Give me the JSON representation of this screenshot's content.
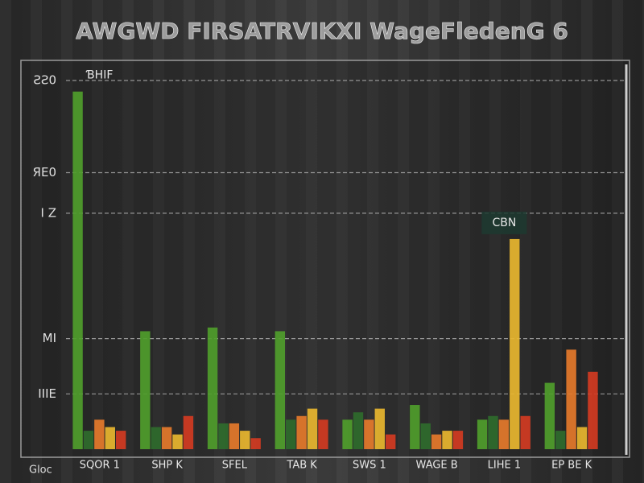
{
  "chart_data": {
    "type": "bar",
    "title": "AWGWD FIRSATRVIKXI WageFledenG 6",
    "corner_label": "Gloc",
    "annotations": [
      {
        "text": "ƁHIF",
        "category": 0
      },
      {
        "text": "CBN",
        "category": 6
      }
    ],
    "categories": [
      "SQOR 1",
      "SHP K",
      "SFEL",
      "TAB K",
      "SWS 1",
      "WAGE B",
      "LIHE 1",
      "EP BE K"
    ],
    "series": [
      {
        "color": "#4f9d2b",
        "values": [
          97,
          32,
          33,
          32,
          8,
          12,
          8,
          18
        ]
      },
      {
        "color": "#2f6b2c",
        "values": [
          5,
          6,
          7,
          8,
          10,
          7,
          9,
          5
        ]
      },
      {
        "color": "#e57a2b",
        "values": [
          8,
          6,
          7,
          9,
          8,
          4,
          8,
          27
        ]
      },
      {
        "color": "#e8b62f",
        "values": [
          6,
          4,
          5,
          11,
          11,
          5,
          57,
          6
        ]
      },
      {
        "color": "#d23b22",
        "values": [
          5,
          9,
          3,
          8,
          4,
          5,
          9,
          21
        ]
      }
    ],
    "ylim": [
      0,
      100
    ],
    "yticks": [
      {
        "value": 100,
        "label": "ƧƧ0"
      },
      {
        "value": 75,
        "label": "ЯE0"
      },
      {
        "value": 64,
        "label": "I Z"
      },
      {
        "value": 30,
        "label": "MI"
      },
      {
        "value": 15,
        "label": "IIIE"
      }
    ],
    "grid": true
  }
}
